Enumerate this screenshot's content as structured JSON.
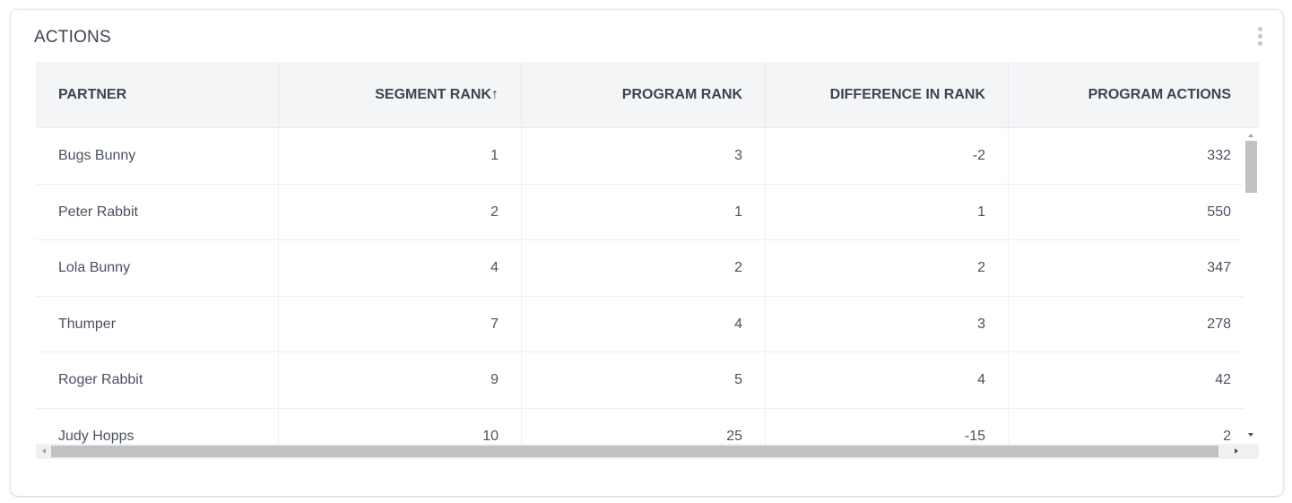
{
  "widget": {
    "title": "ACTIONS",
    "menu_icon": "kebab-vertical-icon"
  },
  "table": {
    "columns": [
      "PARTNER",
      "SEGMENT RANK↑",
      "PROGRAM RANK",
      "DIFFERENCE IN RANK",
      "PROGRAM ACTIONS"
    ],
    "sort": {
      "column": "SEGMENT RANK",
      "direction": "ascending"
    },
    "rows": [
      [
        "Bugs Bunny",
        "1",
        "3",
        "-2",
        "332"
      ],
      [
        "Peter Rabbit",
        "2",
        "1",
        "1",
        "550"
      ],
      [
        "Lola Bunny",
        "4",
        "2",
        "2",
        "347"
      ],
      [
        "Thumper",
        "7",
        "4",
        "3",
        "278"
      ],
      [
        "Roger Rabbit",
        "9",
        "5",
        "4",
        "42"
      ],
      [
        "Judy Hopps",
        "10",
        "25",
        "-15",
        "2"
      ]
    ]
  },
  "colors": {
    "header_bg": "#f4f5f7",
    "text": "#3d4451",
    "border": "#e6e8eb",
    "scrollbar_thumb": "#c1c1c1"
  }
}
